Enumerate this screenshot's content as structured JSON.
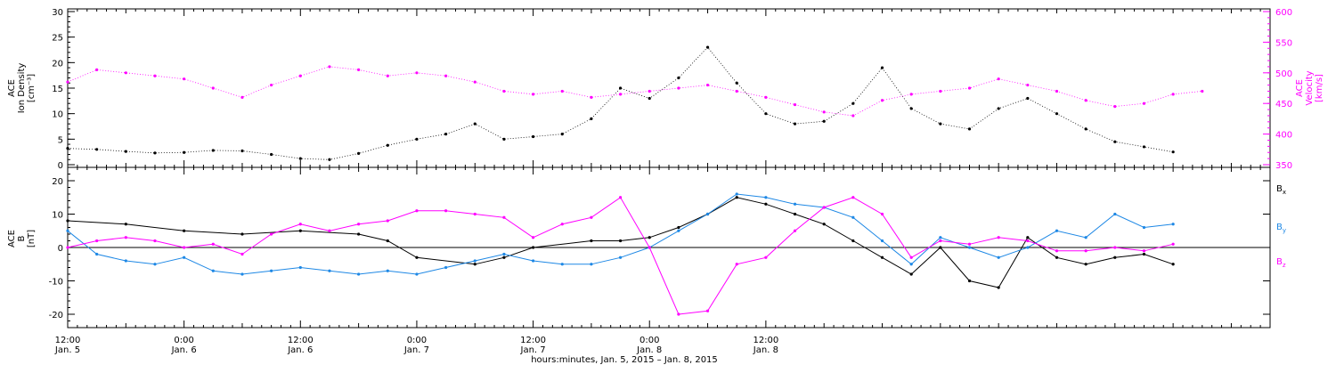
{
  "colors": {
    "black": "#000000",
    "magenta": "#ff00ff",
    "blue": "#1e88e5"
  },
  "chart_data": [
    {
      "type": "scatter",
      "panel": "top",
      "ylabel_left_lines": [
        "ACE",
        "Ion Density",
        "[cm⁻³]"
      ],
      "ylabel_right_lines": [
        "ACE",
        "Velocity",
        "[km/s]"
      ],
      "ylim_left": [
        0,
        30
      ],
      "ylim_right": [
        350,
        600
      ],
      "yticks_left": [
        0,
        5,
        10,
        15,
        20,
        25,
        30
      ],
      "yticks_right": [
        350,
        400,
        450,
        500,
        550,
        600
      ],
      "series": [
        {
          "axis": "left",
          "color": "#000000",
          "points": [
            [
              0,
              3.2
            ],
            [
              3,
              3.0
            ],
            [
              6,
              2.6
            ],
            [
              9,
              2.3
            ],
            [
              12,
              2.4
            ],
            [
              15,
              2.8
            ],
            [
              18,
              2.7
            ],
            [
              21,
              2.0
            ],
            [
              24,
              1.2
            ],
            [
              27,
              1.0
            ],
            [
              30,
              2.2
            ],
            [
              33,
              3.8
            ],
            [
              36,
              5.0
            ],
            [
              39,
              6.0
            ],
            [
              42,
              8.0
            ],
            [
              45,
              5.0
            ],
            [
              48,
              5.5
            ],
            [
              51,
              6.0
            ],
            [
              54,
              9.0
            ],
            [
              57,
              15.0
            ],
            [
              60,
              13.0
            ],
            [
              63,
              17.0
            ],
            [
              66,
              23.0
            ],
            [
              69,
              16.0
            ],
            [
              72,
              10.0
            ],
            [
              75,
              8.0
            ],
            [
              78,
              8.5
            ],
            [
              81,
              12.0
            ],
            [
              84,
              19.0
            ],
            [
              87,
              11.0
            ],
            [
              90,
              8.0
            ],
            [
              93,
              7.0
            ],
            [
              96,
              11.0
            ],
            [
              99,
              13.0
            ],
            [
              102,
              10.0
            ],
            [
              105,
              7.0
            ],
            [
              108,
              4.5
            ],
            [
              111,
              3.5
            ],
            [
              114,
              2.5
            ]
          ]
        },
        {
          "axis": "right",
          "color": "#ff00ff",
          "points": [
            [
              0,
              485
            ],
            [
              3,
              505
            ],
            [
              6,
              500
            ],
            [
              9,
              495
            ],
            [
              12,
              490
            ],
            [
              15,
              475
            ],
            [
              18,
              460
            ],
            [
              21,
              480
            ],
            [
              24,
              495
            ],
            [
              27,
              510
            ],
            [
              30,
              505
            ],
            [
              33,
              495
            ],
            [
              36,
              500
            ],
            [
              39,
              495
            ],
            [
              42,
              485
            ],
            [
              45,
              470
            ],
            [
              48,
              465
            ],
            [
              51,
              470
            ],
            [
              54,
              460
            ],
            [
              57,
              465
            ],
            [
              60,
              470
            ],
            [
              63,
              475
            ],
            [
              66,
              480
            ],
            [
              69,
              470
            ],
            [
              72,
              460
            ],
            [
              75,
              448
            ],
            [
              78,
              436
            ],
            [
              81,
              430
            ],
            [
              84,
              455
            ],
            [
              87,
              465
            ],
            [
              90,
              470
            ],
            [
              93,
              475
            ],
            [
              96,
              490
            ],
            [
              99,
              480
            ],
            [
              102,
              470
            ],
            [
              105,
              455
            ],
            [
              108,
              445
            ],
            [
              111,
              450
            ],
            [
              114,
              465
            ],
            [
              117,
              470
            ]
          ]
        }
      ]
    },
    {
      "type": "scatter",
      "panel": "bottom",
      "ylabel_lines": [
        "ACE",
        "B",
        "[nT]"
      ],
      "ylim": [
        -24,
        24
      ],
      "yticks": [
        -20,
        -10,
        0,
        10,
        20
      ],
      "legend": {
        "placement": "right",
        "entries": [
          {
            "label": "B",
            "sub": "x",
            "color": "#000000"
          },
          {
            "label": "B",
            "sub": "y",
            "color": "#1e88e5"
          },
          {
            "label": "B",
            "sub": "z",
            "color": "#ff00ff"
          }
        ]
      },
      "series": [
        {
          "name": "Bx",
          "color": "#000000",
          "points": [
            [
              0,
              8
            ],
            [
              6,
              7
            ],
            [
              12,
              5
            ],
            [
              18,
              4
            ],
            [
              24,
              5
            ],
            [
              30,
              4
            ],
            [
              33,
              2
            ],
            [
              36,
              -3
            ],
            [
              42,
              -5
            ],
            [
              45,
              -3
            ],
            [
              48,
              0
            ],
            [
              54,
              2
            ],
            [
              57,
              2
            ],
            [
              60,
              3
            ],
            [
              63,
              6
            ],
            [
              66,
              10
            ],
            [
              69,
              15
            ],
            [
              72,
              13
            ],
            [
              75,
              10
            ],
            [
              78,
              7
            ],
            [
              81,
              2
            ],
            [
              84,
              -3
            ],
            [
              87,
              -8
            ],
            [
              90,
              0
            ],
            [
              93,
              -10
            ],
            [
              96,
              -12
            ],
            [
              99,
              3
            ],
            [
              102,
              -3
            ],
            [
              105,
              -5
            ],
            [
              108,
              -3
            ],
            [
              111,
              -2
            ],
            [
              114,
              -5
            ]
          ]
        },
        {
          "name": "By",
          "color": "#1e88e5",
          "points": [
            [
              0,
              5
            ],
            [
              3,
              -2
            ],
            [
              6,
              -4
            ],
            [
              9,
              -5
            ],
            [
              12,
              -3
            ],
            [
              15,
              -7
            ],
            [
              18,
              -8
            ],
            [
              21,
              -7
            ],
            [
              24,
              -6
            ],
            [
              27,
              -7
            ],
            [
              30,
              -8
            ],
            [
              33,
              -7
            ],
            [
              36,
              -8
            ],
            [
              39,
              -6
            ],
            [
              42,
              -4
            ],
            [
              45,
              -2
            ],
            [
              48,
              -4
            ],
            [
              51,
              -5
            ],
            [
              54,
              -5
            ],
            [
              57,
              -3
            ],
            [
              60,
              0
            ],
            [
              63,
              5
            ],
            [
              66,
              10
            ],
            [
              69,
              16
            ],
            [
              72,
              15
            ],
            [
              75,
              13
            ],
            [
              78,
              12
            ],
            [
              81,
              9
            ],
            [
              84,
              2
            ],
            [
              87,
              -5
            ],
            [
              90,
              3
            ],
            [
              93,
              0
            ],
            [
              96,
              -3
            ],
            [
              99,
              0
            ],
            [
              102,
              5
            ],
            [
              105,
              3
            ],
            [
              108,
              10
            ],
            [
              111,
              6
            ],
            [
              114,
              7
            ]
          ]
        },
        {
          "name": "Bz",
          "color": "#ff00ff",
          "points": [
            [
              0,
              0
            ],
            [
              3,
              2
            ],
            [
              6,
              3
            ],
            [
              9,
              2
            ],
            [
              12,
              0
            ],
            [
              15,
              1
            ],
            [
              18,
              -2
            ],
            [
              21,
              4
            ],
            [
              24,
              7
            ],
            [
              27,
              5
            ],
            [
              30,
              7
            ],
            [
              33,
              8
            ],
            [
              36,
              11
            ],
            [
              39,
              11
            ],
            [
              42,
              10
            ],
            [
              45,
              9
            ],
            [
              48,
              3
            ],
            [
              51,
              7
            ],
            [
              54,
              9
            ],
            [
              57,
              15
            ],
            [
              60,
              0
            ],
            [
              63,
              -20
            ],
            [
              66,
              -19
            ],
            [
              69,
              -5
            ],
            [
              72,
              -3
            ],
            [
              75,
              5
            ],
            [
              78,
              12
            ],
            [
              81,
              15
            ],
            [
              84,
              10
            ],
            [
              87,
              -3
            ],
            [
              90,
              2
            ],
            [
              93,
              1
            ],
            [
              96,
              3
            ],
            [
              99,
              2
            ],
            [
              102,
              -1
            ],
            [
              105,
              -1
            ],
            [
              108,
              0
            ],
            [
              111,
              -1
            ],
            [
              114,
              1
            ]
          ]
        }
      ]
    }
  ],
  "x_axis": {
    "xlim_hours": [
      0,
      124
    ],
    "ticks": [
      {
        "h": 0,
        "time": "12:00",
        "date": "Jan. 5"
      },
      {
        "h": 12,
        "time": "0:00",
        "date": "Jan. 6"
      },
      {
        "h": 24,
        "time": "12:00",
        "date": "Jan. 6"
      },
      {
        "h": 36,
        "time": "0:00",
        "date": "Jan. 7"
      },
      {
        "h": 48,
        "time": "12:00",
        "date": "Jan. 7"
      },
      {
        "h": 60,
        "time": "0:00",
        "date": "Jan. 8"
      },
      {
        "h": 72,
        "time": "12:00",
        "date": "Jan. 8"
      }
    ],
    "title": "hours:minutes, Jan.  5, 2015 – Jan.  8, 2015"
  }
}
